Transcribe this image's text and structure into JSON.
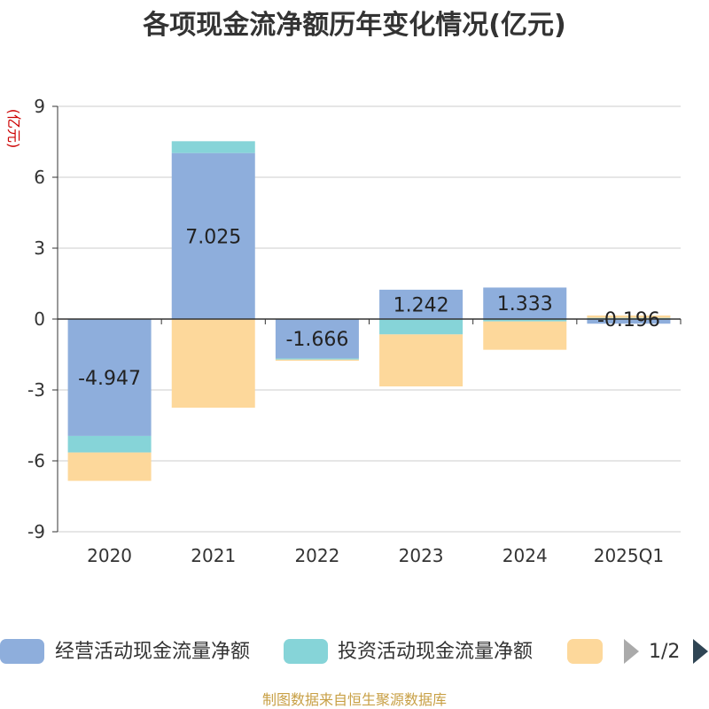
{
  "chart_data": {
    "type": "bar",
    "stacked": true,
    "title": "各项现金流净额历年变化情况(亿元)",
    "ylabel": "(亿元)",
    "xlabel": "",
    "categories": [
      "2020",
      "2021",
      "2022",
      "2023",
      "2024",
      "2025Q1"
    ],
    "ylim": [
      -9,
      9
    ],
    "yticks": [
      9,
      6,
      3,
      0,
      -3,
      -6,
      -9
    ],
    "grid": true,
    "series": [
      {
        "name": "经营活动现金流量净额",
        "color": "#8eaedc",
        "values": [
          -4.947,
          7.025,
          -1.666,
          1.242,
          1.333,
          -0.196
        ],
        "labels": [
          "-4.947",
          "7.025",
          "-1.666",
          "1.242",
          "1.333",
          "-0.196"
        ]
      },
      {
        "name": "投资活动现金流量净额",
        "color": "#86d4d8",
        "values": [
          -0.7,
          0.5,
          -0.05,
          -0.65,
          -0.1,
          0.05
        ]
      },
      {
        "name": "",
        "color": "#fdd89b",
        "values": [
          -1.2,
          -3.75,
          -0.05,
          -2.2,
          -1.2,
          0.1
        ]
      }
    ],
    "legend": {
      "position": "bottom",
      "page": "1/2"
    },
    "source": "制图数据来自恒生聚源数据库"
  }
}
